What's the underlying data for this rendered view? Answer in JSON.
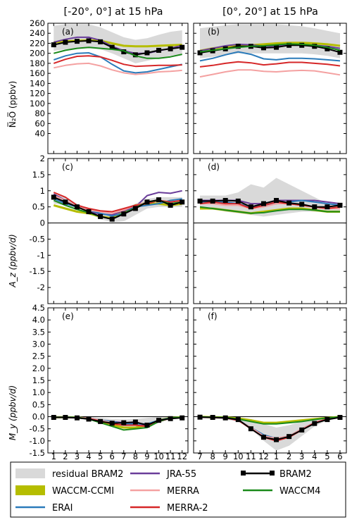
{
  "figure": {
    "col_titles": [
      "[-20°, 0°] at 15 hPa",
      "[0°, 20°] at 15 hPa"
    ],
    "row_ylabels": [
      "N̅₂O̅ (ppbv)",
      "A_z (ppbv/d)",
      "M_y (ppbv/d)"
    ],
    "legend": [
      {
        "name": "residual BRAM2",
        "color": "#d9d9d9",
        "style": "patch"
      },
      {
        "name": "JRA-55",
        "color": "#6a3d9a",
        "style": "line"
      },
      {
        "name": "BRAM2",
        "color": "#000000",
        "style": "line-square"
      },
      {
        "name": "WACCM-CCMI",
        "color": "#b5bd00",
        "style": "patch"
      },
      {
        "name": "MERRA",
        "color": "#f4a1a1",
        "style": "line"
      },
      {
        "name": "WACCM4",
        "color": "#1a8a1a",
        "style": "line"
      },
      {
        "name": "ERAI",
        "color": "#2b7bba",
        "style": "line"
      },
      {
        "name": "MERRA-2",
        "color": "#d62728",
        "style": "line"
      }
    ],
    "xticks_left": [
      "1",
      "2",
      "3",
      "4",
      "5",
      "6",
      "7",
      "8",
      "9",
      "10",
      "11",
      "12"
    ],
    "xticks_right": [
      "7",
      "8",
      "9",
      "10",
      "11",
      "12",
      "1",
      "2",
      "3",
      "4",
      "5",
      "6"
    ]
  },
  "chart_data": [
    {
      "type": "line",
      "panel": "(a)",
      "ylim": [
        0,
        260
      ],
      "yticks": [
        40,
        60,
        80,
        100,
        120,
        140,
        160,
        180,
        200,
        220,
        240,
        260
      ],
      "band": {
        "lower": [
          205,
          208,
          210,
          210,
          208,
          200,
          190,
          180,
          185,
          190,
          195,
          198
        ],
        "upper": [
          255,
          258,
          258,
          258,
          252,
          242,
          232,
          227,
          230,
          237,
          243,
          246
        ]
      },
      "series": [
        {
          "name": "WACCM-CCMI",
          "values": [
            222,
            224,
            225,
            226,
            225,
            220,
            215,
            214,
            214,
            215,
            216,
            217
          ]
        },
        {
          "name": "JRA-55",
          "values": [
            222,
            228,
            232,
            232,
            226,
            214,
            205,
            200,
            200,
            205,
            210,
            216
          ]
        },
        {
          "name": "BRAM2",
          "values": [
            217,
            222,
            224,
            225,
            223,
            212,
            203,
            197,
            201,
            206,
            209,
            212
          ]
        },
        {
          "name": "WACCM4",
          "values": [
            200,
            206,
            210,
            212,
            210,
            208,
            205,
            195,
            190,
            190,
            193,
            198
          ]
        },
        {
          "name": "ERAI",
          "values": [
            187,
            195,
            200,
            201,
            193,
            178,
            165,
            161,
            163,
            168,
            173,
            178
          ]
        },
        {
          "name": "MERRA-2",
          "values": [
            180,
            188,
            194,
            195,
            193,
            186,
            178,
            174,
            175,
            176,
            176,
            177
          ]
        },
        {
          "name": "MERRA",
          "values": [
            171,
            176,
            179,
            180,
            175,
            167,
            161,
            158,
            160,
            163,
            164,
            166
          ]
        }
      ]
    },
    {
      "type": "line",
      "panel": "(b)",
      "ylim": [
        0,
        260
      ],
      "yticks": [
        40,
        60,
        80,
        100,
        120,
        140,
        160,
        180,
        200,
        220,
        240,
        260
      ],
      "band": {
        "lower": [
          190,
          193,
          197,
          200,
          200,
          200,
          200,
          200,
          200,
          198,
          195,
          190
        ],
        "upper": [
          250,
          253,
          256,
          258,
          258,
          258,
          258,
          256,
          254,
          250,
          245,
          240
        ]
      },
      "series": [
        {
          "name": "WACCM-CCMI",
          "values": [
            205,
            210,
            213,
            215,
            216,
            218,
            220,
            221,
            221,
            220,
            218,
            215
          ]
        },
        {
          "name": "JRA-55",
          "values": [
            205,
            210,
            215,
            218,
            217,
            214,
            215,
            217,
            217,
            216,
            214,
            210
          ]
        },
        {
          "name": "BRAM2",
          "values": [
            201,
            205,
            209,
            214,
            214,
            211,
            212,
            216,
            216,
            214,
            209,
            202
          ]
        },
        {
          "name": "WACCM4",
          "values": [
            203,
            206,
            209,
            212,
            214,
            215,
            217,
            219,
            218,
            216,
            212,
            206
          ]
        },
        {
          "name": "ERAI",
          "values": [
            185,
            190,
            197,
            203,
            198,
            189,
            187,
            190,
            190,
            189,
            187,
            185
          ]
        },
        {
          "name": "MERRA-2",
          "values": [
            173,
            176,
            180,
            183,
            181,
            177,
            179,
            182,
            182,
            180,
            178,
            175
          ]
        },
        {
          "name": "MERRA",
          "values": [
            153,
            158,
            163,
            167,
            167,
            164,
            163,
            165,
            166,
            165,
            161,
            157
          ]
        }
      ]
    },
    {
      "type": "line",
      "panel": "(c)",
      "ylim": [
        -2.5,
        2
      ],
      "yticks": [
        -2,
        -1.5,
        -1,
        -0.5,
        0,
        0.5,
        1,
        1.5,
        2
      ],
      "ytick_labels": [
        "-2",
        "-1.5",
        "-1",
        "-0.5",
        "0",
        "0.5",
        "1",
        "1.5",
        "2"
      ],
      "band": {
        "lower": [
          0.6,
          0.55,
          0.4,
          0.3,
          0.12,
          0.02,
          0.05,
          0.25,
          0.45,
          0.5,
          0.5,
          0.5
        ],
        "upper": [
          0.9,
          0.8,
          0.6,
          0.45,
          0.32,
          0.3,
          0.45,
          0.6,
          0.75,
          0.8,
          0.8,
          0.8
        ]
      },
      "series": [
        {
          "name": "WACCM-CCMI",
          "values": [
            0.55,
            0.45,
            0.35,
            0.3,
            0.2,
            0.15,
            0.35,
            0.55,
            0.6,
            0.6,
            0.55,
            0.6
          ]
        },
        {
          "name": "JRA-55",
          "values": [
            0.9,
            0.7,
            0.5,
            0.35,
            0.28,
            0.25,
            0.38,
            0.5,
            0.85,
            0.95,
            0.92,
            1.0
          ]
        },
        {
          "name": "ERAI",
          "values": [
            0.75,
            0.6,
            0.5,
            0.4,
            0.3,
            0.22,
            0.3,
            0.5,
            0.55,
            0.6,
            0.7,
            0.75
          ]
        },
        {
          "name": "MERRA",
          "values": [
            0.85,
            0.7,
            0.5,
            0.4,
            0.35,
            0.3,
            0.4,
            0.55,
            0.65,
            0.7,
            0.6,
            0.65
          ]
        },
        {
          "name": "MERRA-2",
          "values": [
            0.95,
            0.8,
            0.55,
            0.45,
            0.38,
            0.35,
            0.45,
            0.55,
            0.6,
            0.7,
            0.65,
            0.7
          ]
        },
        {
          "name": "WACCM4",
          "values": [
            0.7,
            0.55,
            0.42,
            0.32,
            0.2,
            0.12,
            0.3,
            0.48,
            0.65,
            0.7,
            0.6,
            0.65
          ]
        },
        {
          "name": "BRAM2",
          "values": [
            0.8,
            0.65,
            0.5,
            0.35,
            0.2,
            0.12,
            0.28,
            0.45,
            0.65,
            0.72,
            0.55,
            0.65
          ]
        }
      ]
    },
    {
      "type": "line",
      "panel": "(d)",
      "ylim": [
        -2.5,
        2
      ],
      "yticks": [
        -2,
        -1.5,
        -1,
        -0.5,
        0,
        0.5,
        1,
        1.5,
        2
      ],
      "ytick_labels": [
        "-2",
        "-1.5",
        "-1",
        "-0.5",
        "0",
        "0.5",
        "1",
        "1.5",
        "2"
      ],
      "band": {
        "lower": [
          0.45,
          0.45,
          0.35,
          0.3,
          0.25,
          0.2,
          0.25,
          0.3,
          0.35,
          0.35,
          0.35,
          0.35
        ],
        "upper": [
          0.85,
          0.85,
          0.85,
          0.95,
          1.2,
          1.1,
          1.4,
          1.2,
          1.0,
          0.8,
          0.6,
          0.6
        ]
      },
      "series": [
        {
          "name": "WACCM-CCMI",
          "values": [
            0.45,
            0.45,
            0.4,
            0.35,
            0.3,
            0.35,
            0.4,
            0.45,
            0.45,
            0.4,
            0.35,
            0.35
          ]
        },
        {
          "name": "JRA-55",
          "values": [
            0.7,
            0.7,
            0.7,
            0.7,
            0.6,
            0.6,
            0.7,
            0.7,
            0.7,
            0.7,
            0.65,
            0.6
          ]
        },
        {
          "name": "ERAI",
          "values": [
            0.65,
            0.65,
            0.65,
            0.6,
            0.5,
            0.55,
            0.6,
            0.65,
            0.7,
            0.65,
            0.6,
            0.55
          ]
        },
        {
          "name": "MERRA",
          "values": [
            0.6,
            0.6,
            0.55,
            0.55,
            0.45,
            0.5,
            0.6,
            0.6,
            0.55,
            0.5,
            0.45,
            0.45
          ]
        },
        {
          "name": "MERRA-2",
          "values": [
            0.6,
            0.65,
            0.6,
            0.6,
            0.45,
            0.55,
            0.65,
            0.6,
            0.55,
            0.5,
            0.45,
            0.5
          ]
        },
        {
          "name": "WACCM4",
          "values": [
            0.5,
            0.45,
            0.4,
            0.35,
            0.3,
            0.32,
            0.38,
            0.42,
            0.42,
            0.4,
            0.35,
            0.35
          ]
        },
        {
          "name": "BRAM2",
          "values": [
            0.68,
            0.68,
            0.7,
            0.68,
            0.5,
            0.6,
            0.7,
            0.62,
            0.58,
            0.5,
            0.5,
            0.55
          ]
        }
      ]
    },
    {
      "type": "line",
      "panel": "(e)",
      "ylim": [
        -1.5,
        4.5
      ],
      "yticks": [
        -1.5,
        -1,
        -0.5,
        0,
        0.5,
        1,
        1.5,
        2,
        2.5,
        3,
        3.5,
        4,
        4.5
      ],
      "ytick_labels": [
        "-1.5",
        "-1.0",
        "-0.5",
        "0.0",
        "0.5",
        "1.0",
        "1.5",
        "2.0",
        "2.5",
        "3.0",
        "3.5",
        "4.0",
        "4.5"
      ],
      "band": {
        "lower": [
          -0.08,
          -0.06,
          -0.06,
          -0.1,
          -0.2,
          -0.3,
          -0.4,
          -0.4,
          -0.45,
          -0.25,
          -0.1,
          -0.08
        ],
        "upper": [
          0.02,
          0.02,
          0.02,
          0.0,
          -0.05,
          -0.1,
          -0.12,
          -0.1,
          -0.05,
          0.0,
          0.0,
          0.0
        ]
      },
      "series": [
        {
          "name": "WACCM-CCMI",
          "values": [
            -0.02,
            -0.02,
            -0.03,
            -0.08,
            -0.2,
            -0.35,
            -0.45,
            -0.45,
            -0.35,
            -0.15,
            -0.05,
            -0.02
          ]
        },
        {
          "name": "JRA-55",
          "values": [
            -0.02,
            -0.02,
            -0.03,
            -0.07,
            -0.15,
            -0.2,
            -0.25,
            -0.25,
            -0.4,
            -0.2,
            -0.05,
            -0.03
          ]
        },
        {
          "name": "ERAI",
          "values": [
            -0.02,
            -0.02,
            -0.03,
            -0.06,
            -0.15,
            -0.2,
            -0.3,
            -0.3,
            -0.3,
            -0.15,
            -0.05,
            -0.02
          ]
        },
        {
          "name": "MERRA",
          "values": [
            -0.02,
            -0.02,
            -0.03,
            -0.06,
            -0.15,
            -0.25,
            -0.35,
            -0.35,
            -0.4,
            -0.2,
            -0.06,
            -0.02
          ]
        },
        {
          "name": "MERRA-2",
          "values": [
            -0.03,
            -0.03,
            -0.04,
            -0.08,
            -0.18,
            -0.3,
            -0.35,
            -0.35,
            -0.4,
            -0.2,
            -0.06,
            -0.03
          ]
        },
        {
          "name": "WACCM4",
          "values": [
            -0.02,
            -0.02,
            -0.03,
            -0.1,
            -0.25,
            -0.4,
            -0.55,
            -0.5,
            -0.45,
            -0.2,
            -0.05,
            -0.02
          ]
        },
        {
          "name": "BRAM2",
          "values": [
            -0.03,
            -0.03,
            -0.05,
            -0.1,
            -0.2,
            -0.27,
            -0.25,
            -0.22,
            -0.35,
            -0.15,
            -0.08,
            -0.05
          ]
        }
      ]
    },
    {
      "type": "line",
      "panel": "(f)",
      "ylim": [
        -1.5,
        4.5
      ],
      "yticks": [
        -1.5,
        -1,
        -0.5,
        0,
        0.5,
        1,
        1.5,
        2,
        2.5,
        3,
        3.5,
        4,
        4.5
      ],
      "ytick_labels": [
        "-1.5",
        "-1.0",
        "-0.5",
        "0.0",
        "0.5",
        "1.0",
        "1.5",
        "2.0",
        "2.5",
        "3.0",
        "3.5",
        "4.0",
        "4.5"
      ],
      "band": {
        "lower": [
          -0.05,
          -0.08,
          -0.12,
          -0.2,
          -0.5,
          -1.0,
          -1.4,
          -1.2,
          -0.8,
          -0.4,
          -0.15,
          -0.05
        ],
        "upper": [
          0.02,
          0.02,
          0.0,
          -0.02,
          -0.1,
          -0.3,
          -0.45,
          -0.35,
          -0.2,
          -0.1,
          -0.02,
          0.02
        ]
      },
      "series": [
        {
          "name": "WACCM-CCMI",
          "values": [
            -0.01,
            -0.02,
            -0.03,
            -0.07,
            -0.15,
            -0.25,
            -0.25,
            -0.2,
            -0.15,
            -0.1,
            -0.05,
            -0.01
          ]
        },
        {
          "name": "JRA-55",
          "values": [
            -0.02,
            -0.03,
            -0.05,
            -0.15,
            -0.45,
            -0.8,
            -0.95,
            -0.85,
            -0.5,
            -0.25,
            -0.1,
            -0.02
          ]
        },
        {
          "name": "ERAI",
          "values": [
            -0.02,
            -0.03,
            -0.05,
            -0.15,
            -0.45,
            -0.75,
            -0.9,
            -0.8,
            -0.5,
            -0.25,
            -0.1,
            -0.02
          ]
        },
        {
          "name": "MERRA",
          "values": [
            -0.02,
            -0.03,
            -0.05,
            -0.15,
            -0.45,
            -0.8,
            -0.9,
            -0.8,
            -0.5,
            -0.25,
            -0.1,
            -0.02
          ]
        },
        {
          "name": "MERRA-2",
          "values": [
            -0.02,
            -0.03,
            -0.05,
            -0.15,
            -0.5,
            -0.85,
            -1.0,
            -0.85,
            -0.55,
            -0.25,
            -0.1,
            -0.02
          ]
        },
        {
          "name": "WACCM4",
          "values": [
            -0.01,
            -0.02,
            -0.03,
            -0.1,
            -0.2,
            -0.3,
            -0.3,
            -0.25,
            -0.2,
            -0.12,
            -0.05,
            -0.01
          ]
        },
        {
          "name": "BRAM2",
          "values": [
            -0.02,
            -0.03,
            -0.05,
            -0.12,
            -0.5,
            -0.85,
            -0.95,
            -0.82,
            -0.55,
            -0.28,
            -0.12,
            -0.03
          ]
        }
      ]
    }
  ]
}
